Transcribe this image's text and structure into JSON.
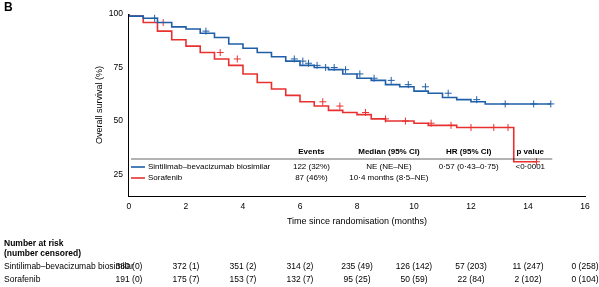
{
  "chart_data": {
    "type": "line",
    "panel_label": "B",
    "x_label": "Time since randomisation (months)",
    "y_label": "Overall survival (%)",
    "xlim": [
      0,
      16
    ],
    "xticks": [
      0,
      2,
      4,
      6,
      8,
      10,
      12,
      14,
      16
    ],
    "ylim": [
      15,
      100
    ],
    "yticks": [
      25,
      50,
      75,
      100
    ],
    "grid": false,
    "series": [
      {
        "name": "Sintilimab–bevacizumab biosimilar",
        "color": "#1f5fa8",
        "line_style": "step",
        "marker": "cross",
        "x": [
          0,
          0.5,
          1,
          1.5,
          2,
          2.5,
          3,
          3.5,
          4,
          4.5,
          5,
          5.5,
          6,
          6.5,
          7,
          7.5,
          8,
          8.5,
          9,
          9.5,
          10,
          10.5,
          11,
          11.5,
          12,
          12.5,
          13,
          13.5,
          14,
          14.8
        ],
        "values": [
          100,
          99,
          98,
          96,
          94,
          93,
          91,
          89,
          86,
          84,
          82,
          80,
          78,
          76,
          75,
          74,
          72,
          70,
          69,
          67,
          66,
          64,
          63,
          61,
          60,
          59,
          58,
          58,
          58,
          58
        ],
        "censored": [
          [
            0.9,
            98
          ],
          [
            2.7,
            92
          ],
          [
            5.8,
            79
          ],
          [
            6.1,
            78
          ],
          [
            6.3,
            77
          ],
          [
            6.6,
            76
          ],
          [
            6.9,
            75
          ],
          [
            7.2,
            75
          ],
          [
            7.6,
            74
          ],
          [
            8.1,
            72
          ],
          [
            8.6,
            70
          ],
          [
            9.2,
            69
          ],
          [
            9.8,
            67
          ],
          [
            10.4,
            66
          ],
          [
            11.2,
            63
          ],
          [
            12.2,
            60
          ],
          [
            13.2,
            58
          ],
          [
            14.2,
            58
          ],
          [
            14.8,
            58
          ]
        ]
      },
      {
        "name": "Sorafenib",
        "color": "#e8312f",
        "line_style": "step",
        "marker": "cross",
        "x": [
          0,
          0.5,
          1,
          1.5,
          2,
          2.5,
          3,
          3.5,
          4,
          4.5,
          5,
          5.5,
          6,
          6.5,
          7,
          7.5,
          8,
          8.5,
          9,
          9.5,
          10,
          10.5,
          11,
          11.5,
          12,
          12.5,
          13,
          13.5,
          13.9,
          14.3
        ],
        "values": [
          100,
          99,
          96,
          92,
          88,
          85,
          82,
          79,
          76,
          72,
          68,
          65,
          62,
          59,
          57,
          55,
          54,
          53,
          51,
          50,
          50,
          49,
          48,
          48,
          47,
          47,
          47,
          47,
          31,
          31
        ],
        "censored": [
          [
            1.2,
            96
          ],
          [
            3.2,
            82
          ],
          [
            3.8,
            79
          ],
          [
            6.8,
            59
          ],
          [
            7.4,
            57
          ],
          [
            8.3,
            54
          ],
          [
            9.0,
            51
          ],
          [
            9.7,
            50
          ],
          [
            10.6,
            49
          ],
          [
            11.3,
            48
          ],
          [
            12.0,
            47
          ],
          [
            12.8,
            47
          ],
          [
            13.3,
            47
          ],
          [
            14.3,
            31
          ]
        ]
      }
    ],
    "legend_table": {
      "headers": [
        "Events",
        "Median (95% CI)",
        "HR (95% CI)",
        "p value"
      ],
      "rows": [
        [
          "122 (32%)",
          "NE (NE–NE)",
          "0·57 (0·43–0·75)",
          "<0·0001"
        ],
        [
          "87 (46%)",
          "10·4 months (8·5–NE)",
          "",
          ""
        ]
      ]
    },
    "risk_table": {
      "title": "Number at risk",
      "subtitle": "(number censored)",
      "rows": [
        [
          "380 (0)",
          "372 (1)",
          "351 (2)",
          "314 (2)",
          "235 (49)",
          "126 (142)",
          "57 (203)",
          "11 (247)",
          "0 (258)"
        ],
        [
          "191 (0)",
          "175 (7)",
          "153 (7)",
          "132 (7)",
          "95 (25)",
          "50 (59)",
          "22 (84)",
          "2 (102)",
          "0 (104)"
        ]
      ]
    }
  }
}
